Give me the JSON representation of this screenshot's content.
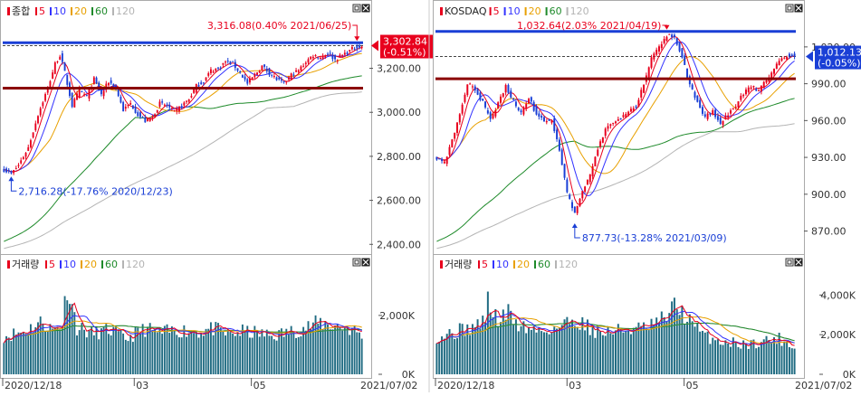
{
  "colors": {
    "up": "#e8001d",
    "down": "#1a3fd6",
    "ma5": "#e8001d",
    "ma10": "#3333ff",
    "ma20": "#e8a000",
    "ma60": "#1e8a2a",
    "ma120": "#b4b4b4",
    "resistance": "#1a3fd6",
    "support": "#8b0000",
    "volume_bar": "#1f6b82",
    "panel_border": "#aaaaaa",
    "axis_text": "#333333"
  },
  "icons": {
    "legend_marker": "legend-square-icon",
    "restore": "window-restore-icon",
    "close": "window-close-icon"
  },
  "x_axis": {
    "start_label": "2020/12/18",
    "mid_labels": [
      "03",
      "05"
    ],
    "end_label": "2021/07/02"
  },
  "kospi": {
    "legend": {
      "title": "종합",
      "ma_labels": [
        "5",
        "10",
        "20",
        "60",
        "120"
      ]
    },
    "high_annotation": "3,316.08(0.40% 2021/06/25)",
    "low_annotation": "2,716.28(-17.76% 2020/12/23)",
    "current_price": "3,302.84",
    "current_change": "(-0.51%)",
    "y_ticks": [
      "3,200.00",
      "3,000.00",
      "2,800.00",
      "2,600.00",
      "2,400.00"
    ],
    "volume_legend": "거래량",
    "volume_ticks": [
      "2,000K",
      "0K"
    ]
  },
  "kosdaq": {
    "legend": {
      "title": "KOSDAQ",
      "ma_labels": [
        "5",
        "10",
        "20",
        "60",
        "120"
      ]
    },
    "high_annotation": "1,032.64(2.03% 2021/04/19)",
    "low_annotation": "877.73(-13.28% 2021/03/09)",
    "current_price": "1,012.13",
    "current_change": "(-0.05%)",
    "y_ticks": [
      "1,020.00",
      "990.00",
      "960.00",
      "930.00",
      "900.00",
      "870.00"
    ],
    "volume_legend": "거래량",
    "volume_ticks": [
      "4,000K",
      "2,000K",
      "0K"
    ]
  },
  "chart_data": [
    {
      "type": "candlestick",
      "name": "종합",
      "x_range": [
        "2020/12/18",
        "2021/07/02"
      ],
      "ylim": [
        2360,
        3420
      ],
      "resistance_level": 3316.08,
      "support_level": 3110,
      "current": 3302.84,
      "high": {
        "value": 3316.08,
        "change_pct": 0.4,
        "date": "2021/06/25"
      },
      "low": {
        "value": 2716.28,
        "change_pct": -17.76,
        "date": "2020/12/23"
      },
      "anchors": [
        [
          0,
          2740
        ],
        [
          3,
          2720
        ],
        [
          6,
          2760
        ],
        [
          10,
          2840
        ],
        [
          14,
          2990
        ],
        [
          18,
          3110
        ],
        [
          21,
          3220
        ],
        [
          23,
          3260
        ],
        [
          25,
          3180
        ],
        [
          28,
          3030
        ],
        [
          31,
          3100
        ],
        [
          34,
          3070
        ],
        [
          37,
          3150
        ],
        [
          40,
          3080
        ],
        [
          43,
          3140
        ],
        [
          46,
          3110
        ],
        [
          49,
          3010
        ],
        [
          52,
          3040
        ],
        [
          55,
          2990
        ],
        [
          58,
          2960
        ],
        [
          61,
          2980
        ],
        [
          64,
          3040
        ],
        [
          67,
          3030
        ],
        [
          70,
          3000
        ],
        [
          73,
          3030
        ],
        [
          76,
          3060
        ],
        [
          79,
          3120
        ],
        [
          82,
          3140
        ],
        [
          85,
          3190
        ],
        [
          88,
          3200
        ],
        [
          91,
          3230
        ],
        [
          94,
          3220
        ],
        [
          97,
          3180
        ],
        [
          100,
          3130
        ],
        [
          103,
          3170
        ],
        [
          106,
          3210
        ],
        [
          109,
          3180
        ],
        [
          112,
          3150
        ],
        [
          115,
          3130
        ],
        [
          118,
          3170
        ],
        [
          121,
          3190
        ],
        [
          124,
          3230
        ],
        [
          127,
          3260
        ],
        [
          130,
          3250
        ],
        [
          133,
          3270
        ],
        [
          136,
          3240
        ],
        [
          139,
          3260
        ],
        [
          142,
          3280
        ],
        [
          145,
          3300
        ],
        [
          147,
          3296
        ]
      ],
      "volume": {
        "ylim": [
          0,
          3500
        ],
        "unit": "K",
        "anchors": [
          [
            0,
            1300
          ],
          [
            8,
            1450
          ],
          [
            16,
            1800
          ],
          [
            20,
            1500
          ],
          [
            24,
            1750
          ],
          [
            26,
            3050
          ],
          [
            30,
            1600
          ],
          [
            36,
            1400
          ],
          [
            44,
            1500
          ],
          [
            50,
            1200
          ],
          [
            58,
            1550
          ],
          [
            64,
            1400
          ],
          [
            72,
            1500
          ],
          [
            80,
            1450
          ],
          [
            86,
            1550
          ],
          [
            92,
            1350
          ],
          [
            98,
            1450
          ],
          [
            104,
            1400
          ],
          [
            110,
            1300
          ],
          [
            118,
            1450
          ],
          [
            124,
            1600
          ],
          [
            130,
            1750
          ],
          [
            136,
            1650
          ],
          [
            142,
            1550
          ],
          [
            147,
            1350
          ]
        ]
      }
    },
    {
      "type": "candlestick",
      "name": "KOSDAQ",
      "x_range": [
        "2020/12/18",
        "2021/07/02"
      ],
      "ylim": [
        852,
        1042
      ],
      "resistance_level": 1032.64,
      "support_level": 994,
      "current": 1012.13,
      "high": {
        "value": 1032.64,
        "change_pct": 2.03,
        "date": "2021/04/19"
      },
      "low": {
        "value": 877.73,
        "change_pct": -13.28,
        "date": "2021/03/09"
      },
      "anchors": [
        [
          0,
          930
        ],
        [
          3,
          925
        ],
        [
          6,
          945
        ],
        [
          9,
          965
        ],
        [
          12,
          990
        ],
        [
          15,
          985
        ],
        [
          18,
          975
        ],
        [
          21,
          960
        ],
        [
          24,
          975
        ],
        [
          27,
          988
        ],
        [
          30,
          975
        ],
        [
          33,
          965
        ],
        [
          36,
          978
        ],
        [
          39,
          965
        ],
        [
          42,
          960
        ],
        [
          45,
          960
        ],
        [
          48,
          935
        ],
        [
          51,
          900
        ],
        [
          54,
          885
        ],
        [
          57,
          902
        ],
        [
          60,
          915
        ],
        [
          63,
          938
        ],
        [
          66,
          952
        ],
        [
          69,
          958
        ],
        [
          72,
          962
        ],
        [
          75,
          968
        ],
        [
          78,
          972
        ],
        [
          81,
          990
        ],
        [
          84,
          1010
        ],
        [
          87,
          1020
        ],
        [
          90,
          1030
        ],
        [
          93,
          1028
        ],
        [
          96,
          1012
        ],
        [
          99,
          988
        ],
        [
          102,
          975
        ],
        [
          105,
          962
        ],
        [
          108,
          968
        ],
        [
          111,
          958
        ],
        [
          114,
          965
        ],
        [
          117,
          972
        ],
        [
          120,
          982
        ],
        [
          123,
          988
        ],
        [
          126,
          985
        ],
        [
          129,
          993
        ],
        [
          132,
          1002
        ],
        [
          135,
          1010
        ],
        [
          138,
          1014
        ],
        [
          140,
          1012
        ]
      ],
      "volume": {
        "ylim": [
          0,
          5200
        ],
        "unit": "K",
        "anchors": [
          [
            0,
            1900
          ],
          [
            6,
            2100
          ],
          [
            12,
            2300
          ],
          [
            18,
            2600
          ],
          [
            20,
            3600
          ],
          [
            24,
            2700
          ],
          [
            28,
            3100
          ],
          [
            32,
            2500
          ],
          [
            36,
            2300
          ],
          [
            42,
            2200
          ],
          [
            48,
            2400
          ],
          [
            54,
            2800
          ],
          [
            58,
            2500
          ],
          [
            64,
            2100
          ],
          [
            70,
            2200
          ],
          [
            76,
            2300
          ],
          [
            82,
            2300
          ],
          [
            88,
            2700
          ],
          [
            94,
            3500
          ],
          [
            98,
            2800
          ],
          [
            104,
            2000
          ],
          [
            110,
            1700
          ],
          [
            116,
            1600
          ],
          [
            122,
            1500
          ],
          [
            128,
            1700
          ],
          [
            134,
            1800
          ],
          [
            140,
            1400
          ]
        ]
      }
    }
  ]
}
